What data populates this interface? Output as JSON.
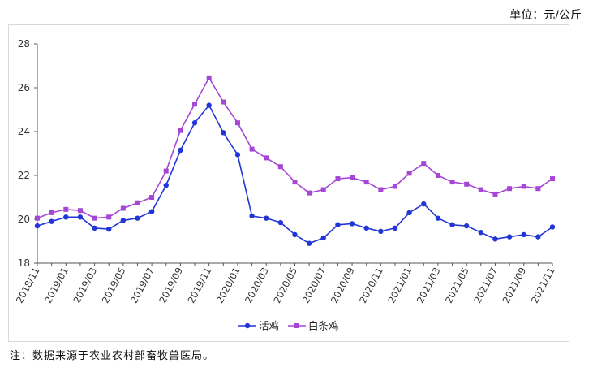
{
  "unit_label": "单位：元/公斤",
  "note": "注：数据来源于农业农村部畜牧兽医局。",
  "chart_data": {
    "type": "line",
    "x": [
      "2018/11",
      "2018/12",
      "2019/01",
      "2019/02",
      "2019/03",
      "2019/04",
      "2019/05",
      "2019/06",
      "2019/07",
      "2019/08",
      "2019/09",
      "2019/10",
      "2019/11",
      "2019/12",
      "2020/01",
      "2020/02",
      "2020/03",
      "2020/04",
      "2020/05",
      "2020/06",
      "2020/07",
      "2020/08",
      "2020/09",
      "2020/10",
      "2020/11",
      "2020/12",
      "2021/01",
      "2021/02",
      "2021/03",
      "2021/04",
      "2021/05",
      "2021/06",
      "2021/07",
      "2021/08",
      "2021/09",
      "2021/10",
      "2021/11"
    ],
    "tick_labels": [
      "2018/11",
      "2019/01",
      "2019/03",
      "2019/05",
      "2019/07",
      "2019/09",
      "2019/11",
      "2020/01",
      "2020/03",
      "2020/05",
      "2020/07",
      "2020/09",
      "2020/11",
      "2021/01",
      "2021/03",
      "2021/05",
      "2021/07",
      "2021/09",
      "2021/11"
    ],
    "ylim": [
      18,
      28
    ],
    "yticks": [
      18,
      20,
      22,
      24,
      26,
      28
    ],
    "legend_position": "bottom",
    "grid": false,
    "series": [
      {
        "name": "活鸡",
        "color": "#2236d6",
        "marker": "circle",
        "values": [
          19.7,
          19.9,
          20.1,
          20.1,
          19.6,
          19.55,
          19.95,
          20.05,
          20.35,
          21.55,
          23.15,
          24.4,
          25.2,
          23.95,
          22.95,
          20.15,
          20.05,
          19.85,
          19.3,
          18.9,
          19.15,
          19.75,
          19.8,
          19.6,
          19.45,
          19.6,
          20.3,
          20.7,
          20.05,
          19.75,
          19.7,
          19.4,
          19.1,
          19.2,
          19.3,
          19.2,
          19.65
        ]
      },
      {
        "name": "白条鸡",
        "color": "#a646d6",
        "marker": "square",
        "values": [
          20.05,
          20.3,
          20.45,
          20.4,
          20.05,
          20.1,
          20.5,
          20.75,
          21.0,
          22.2,
          24.05,
          25.25,
          26.45,
          25.35,
          24.4,
          23.2,
          22.8,
          22.4,
          21.7,
          21.2,
          21.35,
          21.85,
          21.9,
          21.7,
          21.35,
          21.5,
          22.1,
          22.55,
          22.0,
          21.7,
          21.6,
          21.35,
          21.15,
          21.4,
          21.5,
          21.4,
          21.85
        ]
      }
    ]
  }
}
